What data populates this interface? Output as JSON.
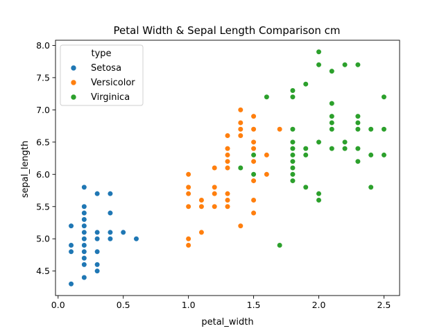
{
  "chart_data": {
    "type": "scatter",
    "title": "Petal Width & Sepal Length Comparison cm",
    "xlabel": "petal_width",
    "ylabel": "sepal_length",
    "xlim": [
      -0.02,
      2.62
    ],
    "ylim": [
      4.12,
      8.08
    ],
    "xticks": [
      0.0,
      0.5,
      1.0,
      1.5,
      2.0,
      2.5
    ],
    "xtick_labels": [
      "0.0",
      "0.5",
      "1.0",
      "1.5",
      "2.0",
      "2.5"
    ],
    "yticks": [
      4.5,
      5.0,
      5.5,
      6.0,
      6.5,
      7.0,
      7.5,
      8.0
    ],
    "ytick_labels": [
      "4.5",
      "5.0",
      "5.5",
      "6.0",
      "6.5",
      "7.0",
      "7.5",
      "8.0"
    ],
    "grid": false,
    "legend": {
      "title": "type",
      "placement": "top-left"
    },
    "series": [
      {
        "name": "Setosa",
        "color": "#1f77b4",
        "points": [
          [
            0.1,
            4.3
          ],
          [
            0.1,
            4.8
          ],
          [
            0.1,
            4.9
          ],
          [
            0.1,
            5.2
          ],
          [
            0.2,
            4.4
          ],
          [
            0.2,
            4.6
          ],
          [
            0.2,
            4.7
          ],
          [
            0.2,
            4.8
          ],
          [
            0.2,
            4.9
          ],
          [
            0.2,
            5.0
          ],
          [
            0.2,
            5.1
          ],
          [
            0.2,
            5.2
          ],
          [
            0.2,
            5.3
          ],
          [
            0.2,
            5.4
          ],
          [
            0.2,
            5.5
          ],
          [
            0.2,
            5.8
          ],
          [
            0.3,
            4.5
          ],
          [
            0.3,
            4.6
          ],
          [
            0.3,
            4.8
          ],
          [
            0.3,
            5.0
          ],
          [
            0.3,
            5.1
          ],
          [
            0.3,
            5.7
          ],
          [
            0.4,
            5.0
          ],
          [
            0.4,
            5.1
          ],
          [
            0.4,
            5.4
          ],
          [
            0.4,
            5.7
          ],
          [
            0.5,
            5.1
          ],
          [
            0.6,
            5.0
          ]
        ]
      },
      {
        "name": "Versicolor",
        "color": "#ff7f0e",
        "points": [
          [
            1.0,
            4.9
          ],
          [
            1.0,
            5.0
          ],
          [
            1.0,
            5.5
          ],
          [
            1.0,
            5.7
          ],
          [
            1.0,
            5.8
          ],
          [
            1.0,
            6.0
          ],
          [
            1.1,
            5.1
          ],
          [
            1.1,
            5.5
          ],
          [
            1.1,
            5.6
          ],
          [
            1.2,
            5.5
          ],
          [
            1.2,
            5.7
          ],
          [
            1.2,
            5.8
          ],
          [
            1.2,
            6.1
          ],
          [
            1.3,
            5.5
          ],
          [
            1.3,
            5.6
          ],
          [
            1.3,
            5.7
          ],
          [
            1.3,
            6.1
          ],
          [
            1.3,
            6.2
          ],
          [
            1.3,
            6.3
          ],
          [
            1.3,
            6.4
          ],
          [
            1.3,
            6.6
          ],
          [
            1.4,
            5.2
          ],
          [
            1.4,
            6.1
          ],
          [
            1.4,
            6.6
          ],
          [
            1.4,
            6.7
          ],
          [
            1.4,
            6.8
          ],
          [
            1.4,
            7.0
          ],
          [
            1.5,
            5.4
          ],
          [
            1.5,
            5.6
          ],
          [
            1.5,
            5.9
          ],
          [
            1.5,
            6.2
          ],
          [
            1.5,
            6.4
          ],
          [
            1.5,
            6.5
          ],
          [
            1.5,
            6.7
          ],
          [
            1.5,
            6.9
          ],
          [
            1.6,
            6.0
          ],
          [
            1.6,
            6.3
          ],
          [
            1.7,
            6.7
          ]
        ]
      },
      {
        "name": "Virginica",
        "color": "#2ca02c",
        "points": [
          [
            1.4,
            6.1
          ],
          [
            1.5,
            6.0
          ],
          [
            1.5,
            6.3
          ],
          [
            1.6,
            7.2
          ],
          [
            1.7,
            4.9
          ],
          [
            1.8,
            5.9
          ],
          [
            1.8,
            6.0
          ],
          [
            1.8,
            6.1
          ],
          [
            1.8,
            6.2
          ],
          [
            1.8,
            6.3
          ],
          [
            1.8,
            6.4
          ],
          [
            1.8,
            6.5
          ],
          [
            1.8,
            6.7
          ],
          [
            1.8,
            7.2
          ],
          [
            1.8,
            7.3
          ],
          [
            1.9,
            5.8
          ],
          [
            1.9,
            6.3
          ],
          [
            1.9,
            6.4
          ],
          [
            1.9,
            7.4
          ],
          [
            2.0,
            5.6
          ],
          [
            2.0,
            5.7
          ],
          [
            2.0,
            6.5
          ],
          [
            2.0,
            7.7
          ],
          [
            2.0,
            7.9
          ],
          [
            2.1,
            6.4
          ],
          [
            2.1,
            6.7
          ],
          [
            2.1,
            6.8
          ],
          [
            2.1,
            6.9
          ],
          [
            2.1,
            7.1
          ],
          [
            2.1,
            7.6
          ],
          [
            2.2,
            6.4
          ],
          [
            2.2,
            6.5
          ],
          [
            2.2,
            7.7
          ],
          [
            2.3,
            6.2
          ],
          [
            2.3,
            6.4
          ],
          [
            2.3,
            6.7
          ],
          [
            2.3,
            6.8
          ],
          [
            2.3,
            6.9
          ],
          [
            2.3,
            7.7
          ],
          [
            2.4,
            5.8
          ],
          [
            2.4,
            6.3
          ],
          [
            2.4,
            6.7
          ],
          [
            2.5,
            6.3
          ],
          [
            2.5,
            6.7
          ],
          [
            2.5,
            7.2
          ]
        ]
      }
    ]
  }
}
